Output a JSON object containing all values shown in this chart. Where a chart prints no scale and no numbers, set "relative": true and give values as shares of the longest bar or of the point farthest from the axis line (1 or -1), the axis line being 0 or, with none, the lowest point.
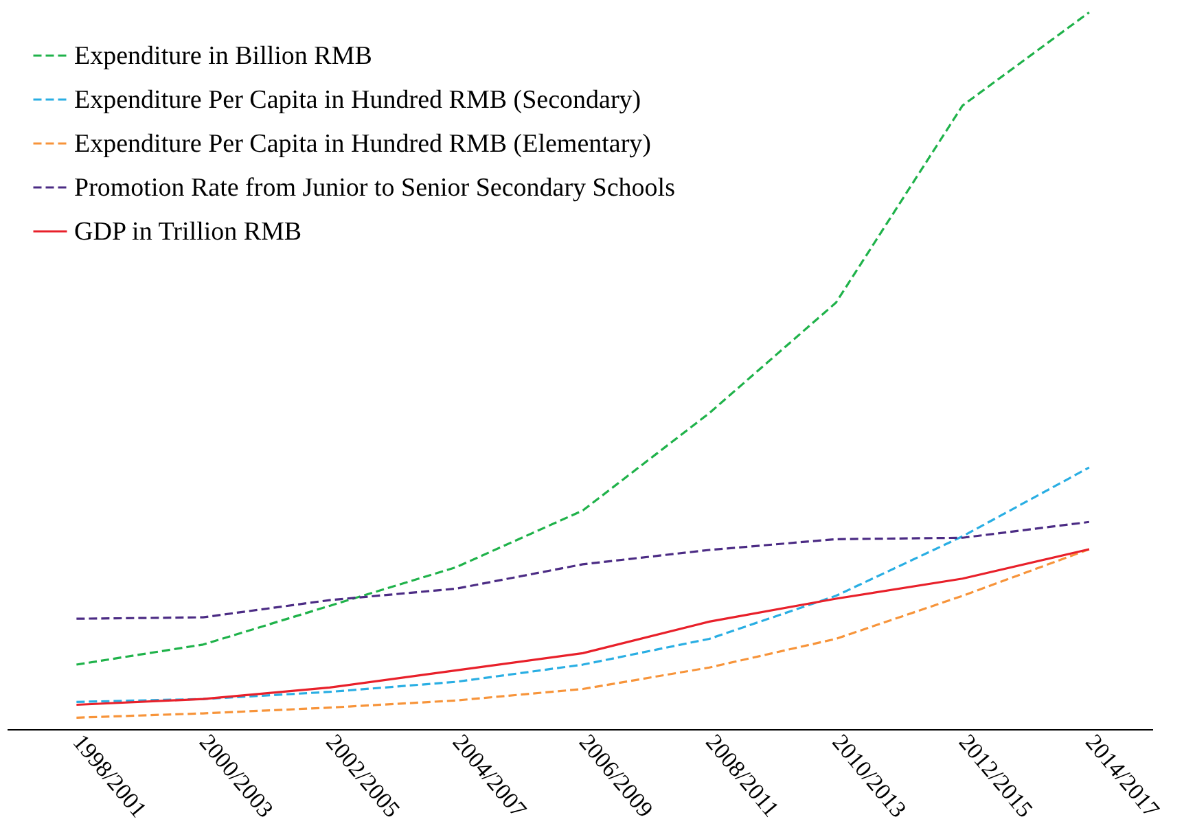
{
  "chart_data": {
    "type": "line",
    "relative": true,
    "legend": "top left",
    "grid": false,
    "categories": [
      "1998/2001",
      "2000/2003",
      "2002/2005",
      "2004/2007",
      "2006/2009",
      "2008/2011",
      "2010/2013",
      "2012/2015",
      "2014/2017"
    ],
    "series": [
      {
        "name": "Expenditure in Billion RMB",
        "color": "#1fb24a",
        "line_style": "dashed",
        "values": [
          0.09,
          0.118,
          0.172,
          0.226,
          0.305,
          0.441,
          0.595,
          0.87,
          1.0
        ]
      },
      {
        "name": "Expenditure Per Capita in Hundred RMB (Secondary)",
        "color": "#29aee3",
        "line_style": "dashed",
        "values": [
          0.038,
          0.042,
          0.052,
          0.066,
          0.09,
          0.126,
          0.186,
          0.269,
          0.365
        ]
      },
      {
        "name": "Expenditure Per Capita in Hundred RMB (Elementary)",
        "color": "#f7943a",
        "line_style": "dashed",
        "values": [
          0.016,
          0.022,
          0.03,
          0.04,
          0.056,
          0.086,
          0.126,
          0.186,
          0.251
        ]
      },
      {
        "name": "Promotion Rate from Junior to Senior Secondary Schools",
        "color": "#4b2b84",
        "line_style": "dashed",
        "values": [
          0.154,
          0.156,
          0.18,
          0.196,
          0.23,
          0.25,
          0.265,
          0.267,
          0.289
        ]
      },
      {
        "name": "GDP in Trillion RMB",
        "color": "#e8202a",
        "line_style": "solid",
        "values": [
          0.034,
          0.042,
          0.058,
          0.082,
          0.106,
          0.15,
          0.182,
          0.21,
          0.251
        ]
      }
    ]
  }
}
